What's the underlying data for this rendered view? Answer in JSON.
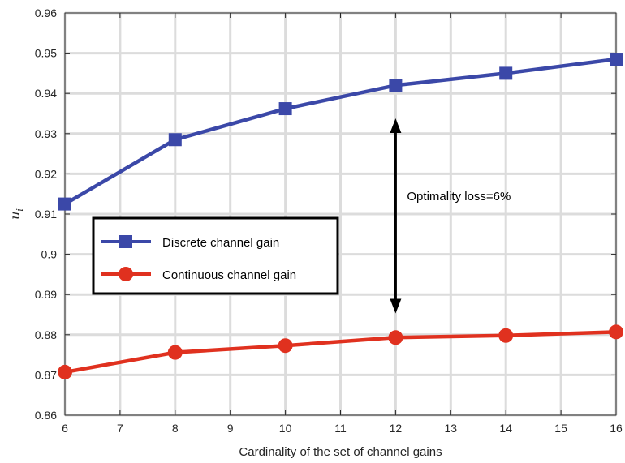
{
  "chart_data": {
    "type": "line",
    "title": "",
    "xlabel": "Cardinality of the set of channel gains",
    "ylabel": "u",
    "ylabel_subscript": "i",
    "xlim": [
      6,
      16
    ],
    "ylim": [
      0.86,
      0.96
    ],
    "xticks": [
      "6",
      "7",
      "8",
      "9",
      "10",
      "11",
      "12",
      "13",
      "14",
      "15",
      "16"
    ],
    "yticks": [
      "0.86",
      "0.87",
      "0.88",
      "0.89",
      "0.9",
      "0.91",
      "0.92",
      "0.93",
      "0.94",
      "0.95",
      "0.96"
    ],
    "grid": true,
    "legend_position": "middle-left",
    "series": [
      {
        "name": "Discrete channel gain",
        "color": "#3b48a8",
        "marker": "square",
        "x": [
          6,
          8,
          10,
          12,
          14,
          16
        ],
        "y": [
          0.9125,
          0.9285,
          0.9362,
          0.942,
          0.945,
          0.9485
        ]
      },
      {
        "name": "Continuous channel gain",
        "color": "#e0311f",
        "marker": "circle",
        "x": [
          6,
          8,
          10,
          12,
          14,
          16
        ],
        "y": [
          0.8707,
          0.8756,
          0.8773,
          0.8793,
          0.8798,
          0.8807
        ]
      }
    ],
    "annotation": {
      "text": "Optimality loss=6%",
      "arrow_x": 12,
      "arrow_y_from": 0.8853,
      "arrow_y_to": 0.9338
    }
  }
}
